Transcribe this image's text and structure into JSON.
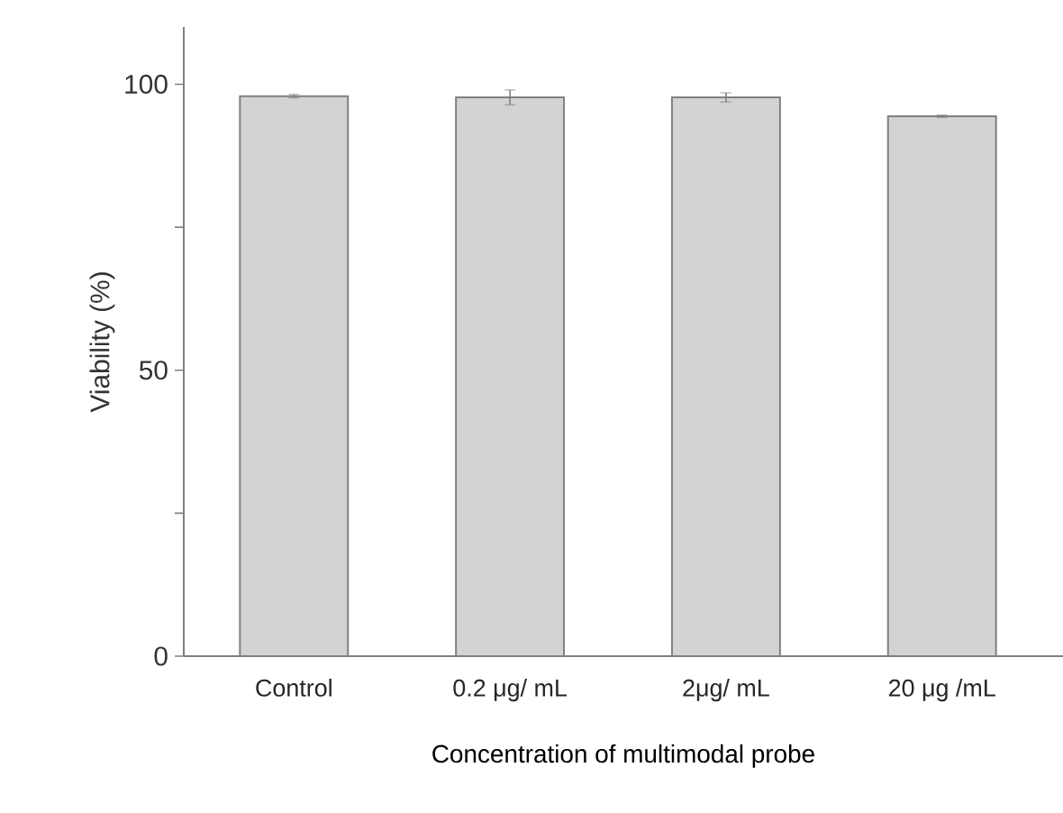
{
  "chart_data": {
    "type": "bar",
    "xlabel": "Concentration of multimodal probe",
    "ylabel": "Viability (%)",
    "categories": [
      "Control",
      "0.2 μg/ mL",
      "2μg/ mL",
      "20 μg /mL"
    ],
    "values": [
      97.9,
      97.7,
      97.7,
      94.4
    ],
    "errors": [
      0.3,
      1.3,
      0.8,
      0.2
    ],
    "color": "#d3d3d3",
    "ylim": [
      0,
      110
    ],
    "yticks": [
      0,
      {
        "value": 25,
        "label": null
      },
      50,
      {
        "value": 75,
        "label": null
      },
      100
    ]
  }
}
